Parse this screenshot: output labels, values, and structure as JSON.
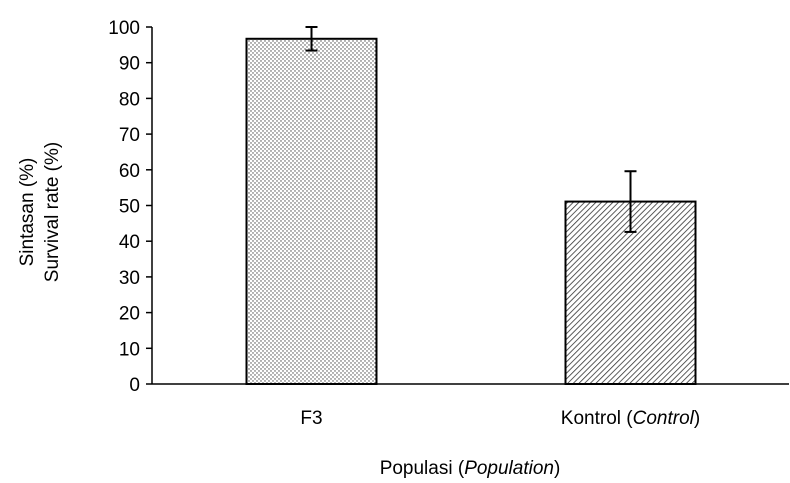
{
  "chart_data": {
    "type": "bar",
    "categories": [
      "F3",
      "Kontrol"
    ],
    "category_labels": [
      {
        "main": "F3",
        "italic": "",
        "suffix": ""
      },
      {
        "main": "Kontrol (",
        "italic": "Control",
        "suffix": ")"
      }
    ],
    "values": [
      96.7,
      51.1
    ],
    "errors": [
      3.3,
      8.5
    ],
    "ylim": [
      0,
      100
    ],
    "yticks": [
      0,
      10,
      20,
      30,
      40,
      50,
      60,
      70,
      80,
      90,
      100
    ],
    "xlabel": {
      "main": "Populasi (",
      "italic": "Population",
      "suffix": ")"
    },
    "ylabel_lines": [
      "Sintasan (%)",
      "Survival rate (%)"
    ],
    "bar_patterns": [
      "dots",
      "diagonal-hatch"
    ],
    "grid": false,
    "legend": "none"
  }
}
